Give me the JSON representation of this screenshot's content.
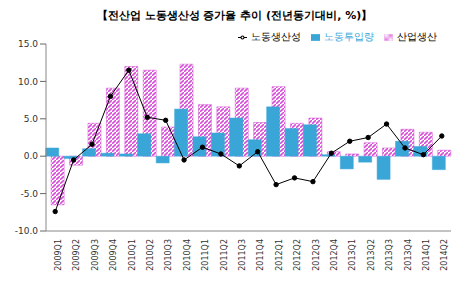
{
  "chart_data": {
    "type": "bar",
    "title": "【전산업 노동생산성 증가율 추이 (전년동기대비, %)】",
    "categories": [
      "2009Q1",
      "2009Q2",
      "2009Q3",
      "2009Q4",
      "2010Q1",
      "2010Q2",
      "2010Q3",
      "2010Q4",
      "2011Q1",
      "2011Q2",
      "2011Q3",
      "2011Q4",
      "2012Q1",
      "2012Q2",
      "2012Q3",
      "2012Q4",
      "2013Q1",
      "2013Q2",
      "2013Q3",
      "2013Q4",
      "2014Q1",
      "2014Q2"
    ],
    "series": [
      {
        "name": "산업생산",
        "type": "bar",
        "color": "#d64fd6",
        "values": [
          -6.5,
          -1.2,
          4.4,
          9.1,
          12.0,
          11.5,
          3.9,
          12.3,
          6.9,
          6.6,
          9.1,
          4.5,
          9.3,
          4.4,
          5.1,
          0.6,
          0.3,
          1.8,
          1.1,
          3.6,
          3.2,
          0.8
        ]
      },
      {
        "name": "노동투입량",
        "type": "bar",
        "color": "#3aa6d8",
        "values": [
          1.1,
          -0.3,
          1.0,
          0.4,
          0.3,
          3.0,
          -0.9,
          6.3,
          2.6,
          3.1,
          5.1,
          2.2,
          6.6,
          3.7,
          4.2,
          0.2,
          -1.7,
          -0.8,
          -3.1,
          2.0,
          1.3,
          -1.8
        ]
      },
      {
        "name": "노동생산성",
        "type": "line",
        "color": "#000000",
        "marker": "circle",
        "values": [
          -7.4,
          -0.5,
          1.6,
          8.0,
          11.5,
          5.2,
          4.8,
          -0.5,
          1.2,
          0.3,
          -1.3,
          0.6,
          -3.8,
          -2.9,
          -3.4,
          0.4,
          2.0,
          2.5,
          4.3,
          1.1,
          0.2,
          2.7
        ]
      }
    ],
    "ylim": [
      -10,
      15
    ],
    "yticks": [
      {
        "value": -10,
        "label": "-10.0"
      },
      {
        "value": -5,
        "label": "-5.0"
      },
      {
        "value": 0,
        "label": "0.0"
      },
      {
        "value": 5,
        "label": "5.0"
      },
      {
        "value": 10,
        "label": "10.0"
      },
      {
        "value": 15,
        "label": "15.0"
      }
    ],
    "grid": false,
    "legend": "top-right"
  }
}
